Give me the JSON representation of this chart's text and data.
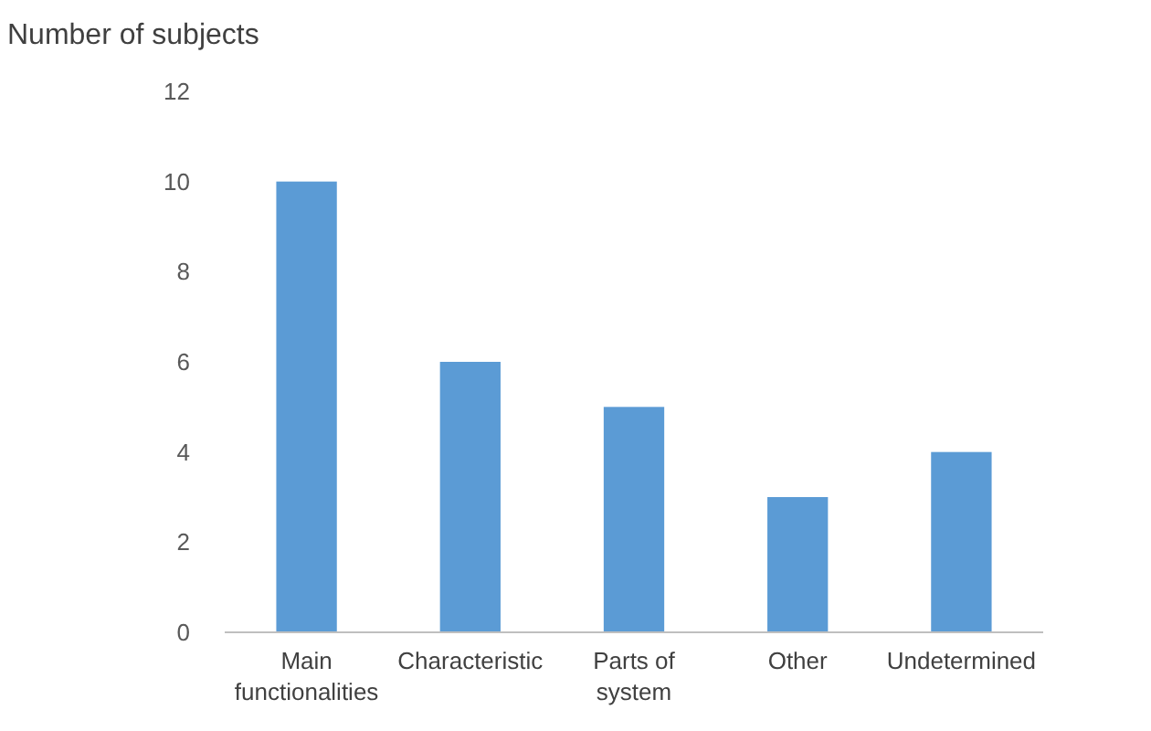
{
  "chart_data": {
    "type": "bar",
    "ylabel": "Number of subjects",
    "categories": [
      "Main functionalities",
      "Characteristic",
      "Parts of system",
      "Other",
      "Undetermined"
    ],
    "values": [
      10,
      6,
      5,
      3,
      4
    ],
    "color": "#5b9bd5",
    "ylim": [
      0,
      12
    ],
    "yticks": [
      0,
      2,
      4,
      6,
      8,
      10,
      12
    ],
    "grid": false
  }
}
